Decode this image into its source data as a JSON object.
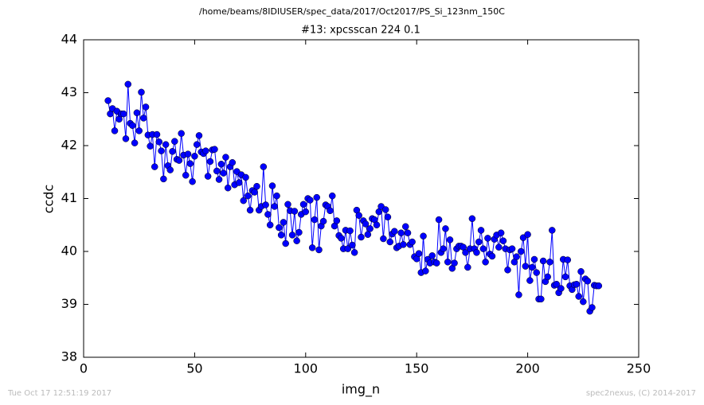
{
  "chart_data": {
    "type": "line",
    "suptitle": "/home/beams/8IDIUSER/spec_data/2017/Oct2017/PS_Si_123nm_150C",
    "title": "#13: xpcsscan 224 0.1",
    "x_label": "img_n",
    "y_label": "ccdc",
    "footer_left": "Tue Oct 17 12:51:19 2017",
    "footer_right": "spec2nexus, (C) 2014-2017",
    "xlim": [
      0,
      250
    ],
    "xticks": [
      0,
      50,
      100,
      150,
      200,
      250
    ],
    "ylim": [
      38,
      44
    ],
    "yticks": [
      38,
      39,
      40,
      41,
      42,
      43,
      44
    ],
    "color": "#0000ff",
    "x": [
      11,
      12,
      13,
      14,
      15,
      16,
      17,
      18,
      19,
      20,
      21,
      22,
      23,
      24,
      25,
      26,
      27,
      28,
      29,
      30,
      31,
      32,
      33,
      34,
      35,
      36,
      37,
      38,
      39,
      40,
      41,
      42,
      43,
      44,
      45,
      46,
      47,
      48,
      49,
      50,
      51,
      52,
      53,
      54,
      55,
      56,
      57,
      58,
      59,
      60,
      61,
      62,
      63,
      64,
      65,
      66,
      67,
      68,
      69,
      70,
      71,
      72,
      73,
      74,
      75,
      76,
      77,
      78,
      79,
      80,
      81,
      82,
      83,
      84,
      85,
      86,
      87,
      88,
      89,
      90,
      91,
      92,
      93,
      94,
      95,
      96,
      97,
      98,
      99,
      100,
      101,
      102,
      103,
      104,
      105,
      106,
      107,
      108,
      109,
      110,
      111,
      112,
      113,
      114,
      115,
      116,
      117,
      118,
      119,
      120,
      121,
      122,
      123,
      124,
      125,
      126,
      127,
      128,
      129,
      130,
      131,
      132,
      133,
      134,
      135,
      136,
      137,
      138,
      139,
      140,
      141,
      142,
      143,
      144,
      145,
      146,
      147,
      148,
      149,
      150,
      151,
      152,
      153,
      154,
      155,
      156,
      157,
      158,
      159,
      160,
      161,
      162,
      163,
      164,
      165,
      166,
      167,
      168,
      169,
      170,
      171,
      172,
      173,
      174,
      175,
      176,
      177,
      178,
      179,
      180,
      181,
      182,
      183,
      184,
      185,
      186,
      187,
      188,
      189,
      190,
      191,
      192,
      193,
      194,
      195,
      196,
      197,
      198,
      199,
      200,
      201,
      202,
      203,
      204,
      205,
      206,
      207,
      208,
      209,
      210,
      211,
      212,
      213,
      214,
      215,
      216,
      217,
      218,
      219,
      220,
      221,
      222,
      223,
      224,
      225,
      226,
      227,
      228,
      229,
      230,
      231,
      232
    ],
    "values": [
      42.85,
      42.6,
      42.7,
      42.28,
      42.65,
      42.5,
      42.6,
      42.6,
      42.13,
      43.16,
      42.42,
      42.38,
      42.05,
      42.62,
      42.28,
      43.01,
      42.52,
      42.73,
      42.2,
      41.99,
      42.21,
      41.6,
      42.21,
      42.07,
      41.9,
      41.37,
      42.02,
      41.62,
      41.54,
      41.89,
      42.08,
      41.74,
      41.72,
      42.23,
      41.82,
      41.44,
      41.84,
      41.66,
      41.32,
      41.8,
      42.02,
      42.19,
      41.88,
      41.85,
      41.9,
      41.42,
      41.7,
      41.92,
      41.93,
      41.52,
      41.36,
      41.65,
      41.48,
      41.78,
      41.2,
      41.6,
      41.68,
      41.26,
      41.51,
      41.3,
      41.45,
      40.96,
      41.4,
      41.05,
      40.78,
      41.15,
      41.12,
      41.23,
      40.78,
      40.85,
      41.6,
      40.88,
      40.7,
      40.5,
      41.24,
      40.85,
      41.05,
      40.45,
      40.31,
      40.55,
      40.15,
      40.89,
      40.77,
      40.31,
      40.76,
      40.2,
      40.36,
      40.7,
      40.89,
      40.75,
      41.0,
      40.97,
      40.07,
      40.6,
      41.02,
      40.03,
      40.48,
      40.57,
      40.88,
      40.85,
      40.77,
      41.05,
      40.48,
      40.58,
      40.3,
      40.25,
      40.05,
      40.4,
      40.05,
      40.39,
      40.12,
      39.98,
      40.78,
      40.68,
      40.27,
      40.58,
      40.52,
      40.32,
      40.43,
      40.62,
      40.6,
      40.5,
      40.75,
      40.85,
      40.24,
      40.79,
      40.65,
      40.18,
      40.33,
      40.38,
      40.07,
      40.1,
      40.35,
      40.13,
      40.47,
      40.35,
      40.13,
      40.18,
      39.9,
      39.86,
      39.96,
      39.6,
      40.29,
      39.63,
      39.85,
      39.78,
      39.92,
      39.8,
      39.78,
      40.6,
      39.98,
      40.05,
      40.43,
      39.8,
      40.22,
      39.68,
      39.78,
      40.05,
      40.1,
      40.1,
      40.08,
      39.98,
      39.7,
      40.05,
      40.62,
      40.05,
      39.98,
      40.18,
      40.4,
      40.05,
      39.8,
      40.25,
      39.95,
      39.91,
      40.23,
      40.31,
      40.08,
      40.35,
      40.2,
      40.05,
      39.65,
      40.03,
      40.05,
      39.8,
      39.9,
      39.18,
      40.0,
      40.26,
      39.72,
      40.32,
      39.45,
      39.7,
      39.85,
      39.6,
      39.1,
      39.1,
      39.82,
      39.43,
      39.52,
      39.8,
      40.4,
      39.36,
      39.38,
      39.22,
      39.3,
      39.85,
      39.52,
      39.84,
      39.35,
      39.28,
      39.37,
      39.38,
      39.15,
      39.62,
      39.05,
      39.48,
      39.44,
      38.87,
      38.94,
      39.36,
      39.35,
      39.35
    ]
  }
}
